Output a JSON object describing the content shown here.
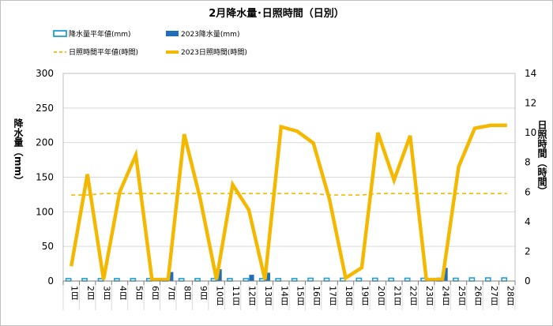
{
  "chart_data": {
    "type": "bar+line",
    "title": "2月降水量･日照時間（日別）",
    "categories": [
      "1日",
      "2日",
      "3日",
      "4日",
      "5日",
      "6日",
      "7日",
      "8日",
      "9日",
      "10日",
      "11日",
      "12日",
      "13日",
      "14日",
      "15日",
      "16日",
      "17日",
      "18日",
      "19日",
      "20日",
      "21日",
      "22日",
      "23日",
      "24日",
      "25日",
      "26日",
      "27日",
      "28日"
    ],
    "y_left": {
      "label": "降水量（mm）",
      "ticks": [
        "0",
        "50",
        "100",
        "150",
        "200",
        "250",
        "300"
      ],
      "range": [
        0,
        300
      ]
    },
    "y_right": {
      "label": "日照時間（時間）",
      "ticks": [
        "0",
        "2",
        "4",
        "6",
        "8",
        "10",
        "12",
        "14"
      ],
      "range": [
        0,
        14
      ]
    },
    "grid": "horizontal",
    "legend_position": "top",
    "series": [
      {
        "name": "降水量平年値(mm)",
        "kind": "bar",
        "axis": "left",
        "color": "#1f9fd8",
        "style": "outline",
        "values": [
          3.5,
          3.5,
          3.5,
          3.5,
          3.5,
          3.5,
          3.5,
          3.5,
          3.5,
          3.5,
          3.5,
          3.5,
          3.5,
          3.5,
          3.5,
          4,
          4,
          4,
          4,
          4,
          4,
          4,
          4,
          4,
          4,
          4.5,
          4.5,
          4.5
        ]
      },
      {
        "name": "2023降水量(mm)",
        "kind": "bar",
        "axis": "left",
        "color": "#1f6fb8",
        "style": "solid",
        "values": [
          0,
          0,
          0,
          0,
          0,
          0,
          13,
          0,
          0,
          17,
          0,
          9,
          12,
          0,
          0,
          0,
          0,
          0,
          0,
          0,
          0,
          0,
          0,
          19,
          0,
          0,
          0,
          0
        ]
      },
      {
        "name": "日照時間平年値(時間)",
        "kind": "line",
        "axis": "right",
        "color": "#f5b800",
        "style": "dashed",
        "values": [
          5.8,
          5.8,
          5.9,
          5.9,
          5.9,
          5.9,
          5.9,
          5.9,
          5.9,
          5.9,
          5.9,
          5.9,
          5.9,
          5.9,
          5.9,
          5.9,
          5.8,
          5.8,
          5.8,
          5.9,
          5.9,
          5.9,
          5.9,
          5.9,
          5.9,
          5.9,
          5.9,
          5.9
        ]
      },
      {
        "name": "2023日照時間(時間)",
        "kind": "line",
        "axis": "right",
        "color": "#f5b800",
        "style": "solid",
        "values": [
          1.0,
          7.2,
          0.1,
          6.0,
          8.5,
          0.1,
          0.1,
          9.9,
          5.5,
          0.1,
          6.5,
          4.8,
          0.1,
          10.4,
          10.1,
          9.3,
          5.5,
          0.2,
          0.9,
          10.0,
          6.8,
          9.8,
          0.1,
          0.1,
          7.7,
          10.3,
          10.5,
          10.5
        ]
      }
    ]
  }
}
